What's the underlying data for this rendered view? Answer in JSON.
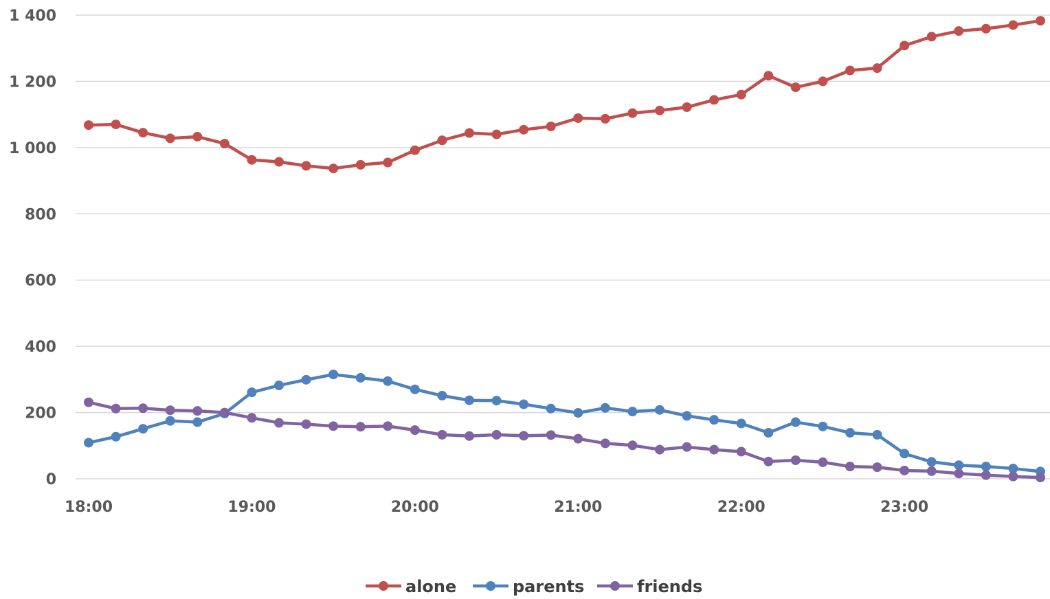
{
  "chart_data": {
    "type": "line",
    "title": "",
    "xlabel": "",
    "ylabel": "",
    "ylim": [
      0,
      1400
    ],
    "yticks": [
      {
        "value": 0,
        "label": "0"
      },
      {
        "value": 200,
        "label": "200"
      },
      {
        "value": 400,
        "label": "400"
      },
      {
        "value": 600,
        "label": "600"
      },
      {
        "value": 800,
        "label": "800"
      },
      {
        "value": 1000,
        "label": "1 000"
      },
      {
        "value": 1200,
        "label": "1 200"
      },
      {
        "value": 1400,
        "label": "1 400"
      }
    ],
    "x": [
      "18:00",
      "18:10",
      "18:20",
      "18:30",
      "18:40",
      "18:50",
      "19:00",
      "19:10",
      "19:20",
      "19:30",
      "19:40",
      "19:50",
      "20:00",
      "20:10",
      "20:20",
      "20:30",
      "20:40",
      "20:50",
      "21:00",
      "21:10",
      "21:20",
      "21:30",
      "21:40",
      "21:50",
      "22:00",
      "22:10",
      "22:20",
      "22:30",
      "22:40",
      "22:50",
      "23:00",
      "23:10",
      "23:20",
      "23:30",
      "23:40",
      "23:50"
    ],
    "xtick_labels": [
      "18:00",
      "19:00",
      "20:00",
      "21:00",
      "22:00",
      "23:00"
    ],
    "xtick_every": 6,
    "grid": "horizontal",
    "legend_position": "bottom",
    "series": [
      {
        "name": "alone",
        "color": "#c0504d",
        "values": [
          1068,
          1070,
          1045,
          1028,
          1033,
          1012,
          963,
          957,
          945,
          937,
          948,
          955,
          992,
          1022,
          1044,
          1040,
          1054,
          1064,
          1089,
          1087,
          1104,
          1112,
          1122,
          1144,
          1160,
          1217,
          1182,
          1200,
          1233,
          1240,
          1308,
          1335,
          1352,
          1359,
          1370,
          1383
        ]
      },
      {
        "name": "parents",
        "color": "#4f81bd",
        "values": [
          109,
          127,
          151,
          175,
          171,
          197,
          261,
          282,
          299,
          315,
          305,
          295,
          270,
          251,
          237,
          236,
          225,
          212,
          199,
          214,
          203,
          208,
          190,
          178,
          167,
          139,
          171,
          158,
          139,
          133,
          76,
          51,
          41,
          37,
          31,
          22
        ]
      },
      {
        "name": "friends",
        "color": "#8064a2",
        "values": [
          231,
          212,
          213,
          207,
          205,
          200,
          184,
          169,
          165,
          159,
          157,
          159,
          147,
          133,
          129,
          133,
          130,
          132,
          121,
          107,
          101,
          88,
          96,
          88,
          82,
          52,
          56,
          50,
          37,
          35,
          25,
          23,
          16,
          11,
          7,
          4
        ]
      }
    ]
  }
}
